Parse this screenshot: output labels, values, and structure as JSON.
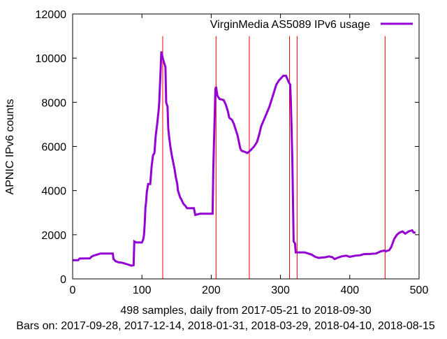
{
  "chart_data": {
    "type": "line",
    "title": "",
    "xlabel": "498 samples, daily from 2017-05-21 to 2018-09-30",
    "xlabel2": "Bars on:  2017-09-28, 2017-12-14, 2018-01-31, 2018-03-29, 2018-04-10, 2018-08-15",
    "ylabel": "APNIC IPv6 counts",
    "xlim": [
      0,
      500
    ],
    "ylim": [
      0,
      12000
    ],
    "xticks": [
      0,
      100,
      200,
      300,
      400,
      500
    ],
    "yticks": [
      0,
      2000,
      4000,
      6000,
      8000,
      10000,
      12000
    ],
    "grid": false,
    "legend_position": "top-right",
    "bar_color": "#ff0000",
    "bars_x": [
      130,
      207,
      255,
      313,
      324,
      451
    ],
    "series": [
      {
        "name": "VirginMedia AS5089 IPv6 usage",
        "color": "#9400d3",
        "points": [
          [
            0,
            850
          ],
          [
            8,
            850
          ],
          [
            10,
            920
          ],
          [
            25,
            930
          ],
          [
            27,
            1000
          ],
          [
            30,
            1050
          ],
          [
            35,
            1100
          ],
          [
            40,
            1150
          ],
          [
            58,
            1150
          ],
          [
            59,
            900
          ],
          [
            62,
            800
          ],
          [
            66,
            750
          ],
          [
            70,
            740
          ],
          [
            75,
            700
          ],
          [
            80,
            650
          ],
          [
            85,
            600
          ],
          [
            88,
            620
          ],
          [
            89,
            1700
          ],
          [
            92,
            1650
          ],
          [
            100,
            1650
          ],
          [
            102,
            1800
          ],
          [
            103,
            2000
          ],
          [
            104,
            2500
          ],
          [
            105,
            3200
          ],
          [
            106,
            3500
          ],
          [
            107,
            3900
          ],
          [
            109,
            4300
          ],
          [
            112,
            4300
          ],
          [
            114,
            5100
          ],
          [
            116,
            5600
          ],
          [
            118,
            5700
          ],
          [
            120,
            6500
          ],
          [
            122,
            7000
          ],
          [
            124,
            7600
          ],
          [
            125,
            8000
          ],
          [
            127,
            9500
          ],
          [
            128,
            10300
          ],
          [
            130,
            10000
          ],
          [
            132,
            9800
          ],
          [
            134,
            9600
          ],
          [
            135,
            8000
          ],
          [
            137,
            7800
          ],
          [
            138,
            6800
          ],
          [
            139,
            6500
          ],
          [
            141,
            6000
          ],
          [
            143,
            5600
          ],
          [
            147,
            5000
          ],
          [
            149,
            4600
          ],
          [
            151,
            4300
          ],
          [
            152,
            4000
          ],
          [
            155,
            3700
          ],
          [
            157,
            3600
          ],
          [
            160,
            3400
          ],
          [
            163,
            3300
          ],
          [
            165,
            3200
          ],
          [
            175,
            3200
          ],
          [
            177,
            2900
          ],
          [
            184,
            2950
          ],
          [
            202,
            2950
          ],
          [
            203,
            5000
          ],
          [
            205,
            7400
          ],
          [
            206,
            8600
          ],
          [
            207,
            8700
          ],
          [
            209,
            8300
          ],
          [
            212,
            8150
          ],
          [
            218,
            8100
          ],
          [
            221,
            7900
          ],
          [
            224,
            7600
          ],
          [
            226,
            7300
          ],
          [
            230,
            7200
          ],
          [
            233,
            7000
          ],
          [
            236,
            6700
          ],
          [
            238,
            6500
          ],
          [
            240,
            6200
          ],
          [
            242,
            5900
          ],
          [
            244,
            5800
          ],
          [
            249,
            5750
          ],
          [
            252,
            5700
          ],
          [
            256,
            5800
          ],
          [
            262,
            6000
          ],
          [
            266,
            6200
          ],
          [
            269,
            6500
          ],
          [
            272,
            6900
          ],
          [
            276,
            7200
          ],
          [
            280,
            7500
          ],
          [
            284,
            7800
          ],
          [
            288,
            8200
          ],
          [
            291,
            8500
          ],
          [
            294,
            8800
          ],
          [
            298,
            9000
          ],
          [
            304,
            9200
          ],
          [
            308,
            9200
          ],
          [
            312,
            8900
          ],
          [
            314,
            8800
          ],
          [
            315,
            8000
          ],
          [
            317,
            5500
          ],
          [
            318,
            3500
          ],
          [
            319,
            1700
          ],
          [
            321,
            1600
          ],
          [
            322,
            1200
          ],
          [
            325,
            1200
          ],
          [
            335,
            1200
          ],
          [
            340,
            1150
          ],
          [
            345,
            1100
          ],
          [
            350,
            1000
          ],
          [
            355,
            950
          ],
          [
            365,
            980
          ],
          [
            370,
            1020
          ],
          [
            375,
            980
          ],
          [
            378,
            900
          ],
          [
            382,
            950
          ],
          [
            388,
            1020
          ],
          [
            395,
            1050
          ],
          [
            400,
            1000
          ],
          [
            408,
            1050
          ],
          [
            415,
            1070
          ],
          [
            420,
            1120
          ],
          [
            430,
            1130
          ],
          [
            438,
            1150
          ],
          [
            445,
            1250
          ],
          [
            450,
            1280
          ],
          [
            452,
            1250
          ],
          [
            457,
            1300
          ],
          [
            460,
            1450
          ],
          [
            464,
            1800
          ],
          [
            468,
            2000
          ],
          [
            472,
            2100
          ],
          [
            476,
            2150
          ],
          [
            480,
            2050
          ],
          [
            485,
            2150
          ],
          [
            490,
            2200
          ],
          [
            492,
            2100
          ],
          [
            495,
            2100
          ]
        ]
      }
    ]
  }
}
